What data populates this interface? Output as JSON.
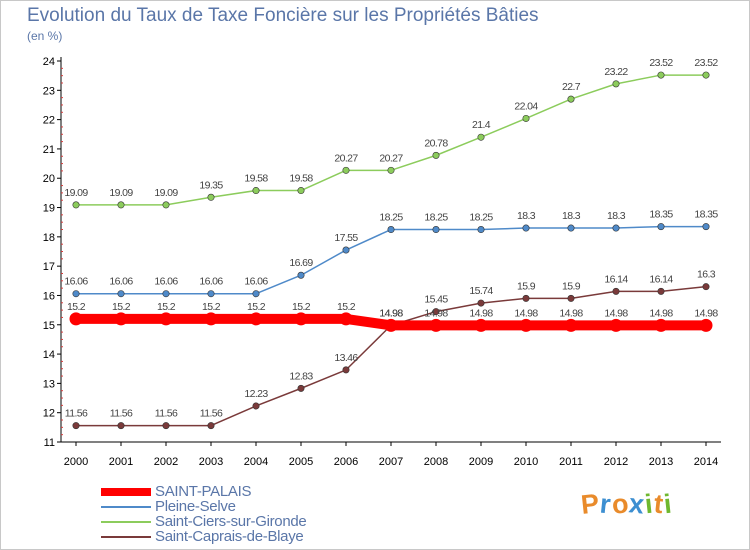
{
  "title": "Evolution du Taux de Taxe Foncière sur les Propriétés Bâties",
  "subtitle": "(en %)",
  "logo": {
    "text": "Proxiti",
    "letters": [
      "P",
      "r",
      "o",
      "x",
      "i",
      "t",
      "i"
    ],
    "colors": [
      "#e98b2b",
      "#3d8fd1",
      "#e98b2b",
      "#3d8fd1",
      "#6fb82f",
      "#e98b2b",
      "#6fb82f"
    ]
  },
  "chart_data": {
    "type": "line",
    "x": [
      "2000",
      "2001",
      "2002",
      "2003",
      "2004",
      "2005",
      "2006",
      "2007",
      "2008",
      "2009",
      "2010",
      "2011",
      "2012",
      "2013",
      "2014"
    ],
    "ylim": [
      11,
      24
    ],
    "yticks": [
      "11",
      "12",
      "13",
      "14",
      "15",
      "16",
      "17",
      "18",
      "19",
      "20",
      "21",
      "22",
      "23",
      "24"
    ],
    "grid": "none",
    "legend": "bottom-left",
    "series": [
      {
        "name": "SAINT-PALAIS",
        "color": "#ff0000",
        "values": [
          15.2,
          15.2,
          15.2,
          15.2,
          15.2,
          15.2,
          15.2,
          14.98,
          14.98,
          14.98,
          14.98,
          14.98,
          14.98,
          14.98,
          14.98
        ],
        "labels": [
          "15.2",
          "15.2",
          "15.2",
          "15.2",
          "15.2",
          "15.2",
          "15.2",
          "14.98",
          "14.98",
          "14.98",
          "14.98",
          "14.98",
          "14.98",
          "14.98",
          "14.98"
        ]
      },
      {
        "name": "Pleine-Selve",
        "color": "#4f8ac9",
        "values": [
          16.06,
          16.06,
          16.06,
          16.06,
          16.06,
          16.69,
          17.55,
          18.25,
          18.25,
          18.25,
          18.3,
          18.3,
          18.3,
          18.35,
          18.35
        ],
        "labels": [
          "16.06",
          "16.06",
          "16.06",
          "16.06",
          "16.06",
          "16.69",
          "17.55",
          "18.25",
          "18.25",
          "18.25",
          "18.3",
          "18.3",
          "18.3",
          "18.35",
          "18.35"
        ]
      },
      {
        "name": "Saint-Ciers-sur-Gironde",
        "color": "#8ccc5c",
        "values": [
          19.09,
          19.09,
          19.09,
          19.35,
          19.58,
          19.58,
          20.27,
          20.27,
          20.78,
          21.4,
          22.04,
          22.7,
          23.22,
          23.52,
          23.52
        ],
        "labels": [
          "19.09",
          "19.09",
          "19.09",
          "19.35",
          "19.58",
          "19.58",
          "20.27",
          "20.27",
          "20.78",
          "21.4",
          "22.04",
          "22.7",
          "23.22",
          "23.52",
          "23.52"
        ]
      },
      {
        "name": "Saint-Caprais-de-Blaye",
        "color": "#7a3a3a",
        "values": [
          11.56,
          11.56,
          11.56,
          11.56,
          12.23,
          12.83,
          13.46,
          14.98,
          15.45,
          15.74,
          15.9,
          15.9,
          16.14,
          16.14,
          16.3
        ],
        "labels": [
          "11.56",
          "11.56",
          "11.56",
          "11.56",
          "12.23",
          "12.83",
          "13.46",
          "14.98",
          "15.45",
          "15.74",
          "15.9",
          "15.9",
          "16.14",
          "16.14",
          "16.3"
        ]
      }
    ]
  }
}
